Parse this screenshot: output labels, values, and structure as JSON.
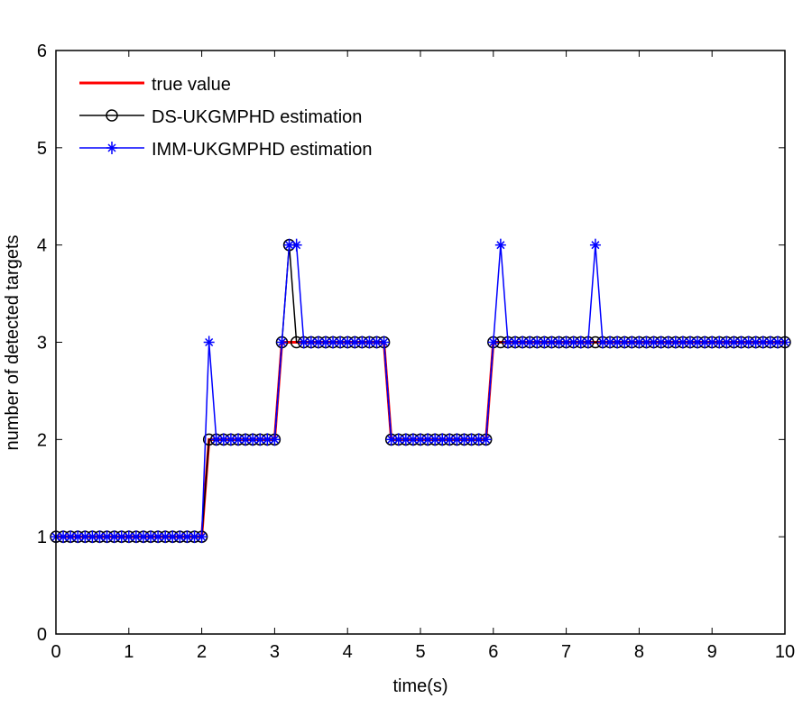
{
  "chart_data": {
    "type": "line",
    "title": "",
    "xlabel": "time(s)",
    "ylabel": "number of detected targets",
    "xlim": [
      0,
      10
    ],
    "ylim": [
      0,
      6
    ],
    "xticks": [
      "0",
      "1",
      "2",
      "3",
      "4",
      "5",
      "6",
      "7",
      "8",
      "9",
      "10"
    ],
    "yticks": [
      "0",
      "1",
      "2",
      "3",
      "4",
      "5",
      "6"
    ],
    "grid": false,
    "legend_placement": "top-left",
    "x_start": 0,
    "x_step": 0.1,
    "series": [
      {
        "name": "true value",
        "color": "#ff0000",
        "marker": "none",
        "values": [
          1,
          1,
          1,
          1,
          1,
          1,
          1,
          1,
          1,
          1,
          1,
          1,
          1,
          1,
          1,
          1,
          1,
          1,
          1,
          1,
          1,
          2,
          2,
          2,
          2,
          2,
          2,
          2,
          2,
          2,
          2,
          3,
          3,
          3,
          3,
          3,
          3,
          3,
          3,
          3,
          3,
          3,
          3,
          3,
          3,
          3,
          2,
          2,
          2,
          2,
          2,
          2,
          2,
          2,
          2,
          2,
          2,
          2,
          2,
          2,
          3,
          3,
          3,
          3,
          3,
          3,
          3,
          3,
          3,
          3,
          3,
          3,
          3,
          3,
          3,
          3,
          3,
          3,
          3,
          3,
          3,
          3,
          3,
          3,
          3,
          3,
          3,
          3,
          3,
          3,
          3,
          3,
          3,
          3,
          3,
          3,
          3,
          3,
          3,
          3,
          3
        ]
      },
      {
        "name": "DS-UKGMPHD estimation",
        "color": "#000000",
        "marker": "circle",
        "values": [
          1,
          1,
          1,
          1,
          1,
          1,
          1,
          1,
          1,
          1,
          1,
          1,
          1,
          1,
          1,
          1,
          1,
          1,
          1,
          1,
          1,
          2,
          2,
          2,
          2,
          2,
          2,
          2,
          2,
          2,
          2,
          3,
          4,
          3,
          3,
          3,
          3,
          3,
          3,
          3,
          3,
          3,
          3,
          3,
          3,
          3,
          2,
          2,
          2,
          2,
          2,
          2,
          2,
          2,
          2,
          2,
          2,
          2,
          2,
          2,
          3,
          3,
          3,
          3,
          3,
          3,
          3,
          3,
          3,
          3,
          3,
          3,
          3,
          3,
          3,
          3,
          3,
          3,
          3,
          3,
          3,
          3,
          3,
          3,
          3,
          3,
          3,
          3,
          3,
          3,
          3,
          3,
          3,
          3,
          3,
          3,
          3,
          3,
          3,
          3,
          3
        ]
      },
      {
        "name": "IMM-UKGMPHD estimation",
        "color": "#0000ff",
        "marker": "star",
        "values": [
          1,
          1,
          1,
          1,
          1,
          1,
          1,
          1,
          1,
          1,
          1,
          1,
          1,
          1,
          1,
          1,
          1,
          1,
          1,
          1,
          1,
          3,
          2,
          2,
          2,
          2,
          2,
          2,
          2,
          2,
          2,
          3,
          4,
          4,
          3,
          3,
          3,
          3,
          3,
          3,
          3,
          3,
          3,
          3,
          3,
          3,
          2,
          2,
          2,
          2,
          2,
          2,
          2,
          2,
          2,
          2,
          2,
          2,
          2,
          2,
          3,
          4,
          3,
          3,
          3,
          3,
          3,
          3,
          3,
          3,
          3,
          3,
          3,
          3,
          4,
          3,
          3,
          3,
          3,
          3,
          3,
          3,
          3,
          3,
          3,
          3,
          3,
          3,
          3,
          3,
          3,
          3,
          3,
          3,
          3,
          3,
          3,
          3,
          3,
          3,
          3
        ]
      }
    ]
  }
}
